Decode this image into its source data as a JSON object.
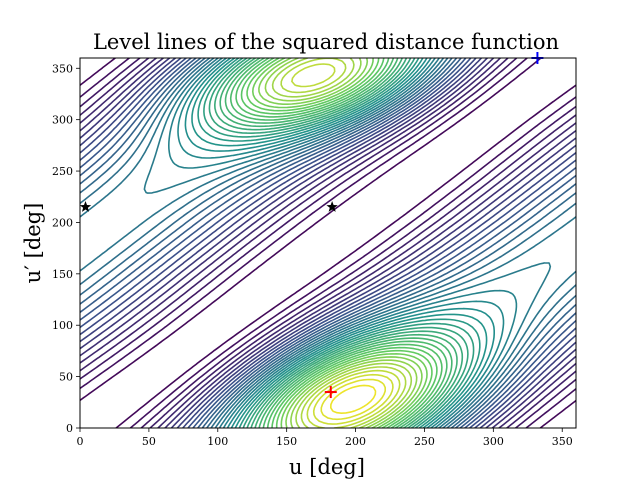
{
  "chart_data": {
    "type": "contour",
    "title": "Level lines of the squared distance function",
    "xlabel": "u [deg]",
    "ylabel": "u′ [deg]",
    "xlim": [
      0,
      360
    ],
    "ylim": [
      0,
      360
    ],
    "xticks": [
      0,
      50,
      100,
      150,
      200,
      250,
      300,
      350
    ],
    "yticks": [
      0,
      50,
      100,
      150,
      200,
      250,
      300,
      350
    ],
    "grid": false,
    "colormap": "viridis",
    "colormap_stops": [
      "#440154",
      "#3b528b",
      "#21918c",
      "#5ec962",
      "#fde725"
    ],
    "level_count": 40,
    "maximum_center": [
      183,
      35
    ],
    "secondary_maximum_center": [
      182,
      340
    ],
    "markers": [
      {
        "name": "red-plus",
        "symbol": "+",
        "color": "#ff0000",
        "x": 182,
        "y": 35
      },
      {
        "name": "blue-plus",
        "symbol": "+",
        "color": "#0000ff",
        "x": 332,
        "y": 360
      },
      {
        "name": "black-star-left",
        "symbol": "★",
        "color": "#000000",
        "x": 4,
        "y": 215
      },
      {
        "name": "black-star-center",
        "symbol": "★",
        "color": "#000000",
        "x": 183,
        "y": 215
      }
    ]
  }
}
